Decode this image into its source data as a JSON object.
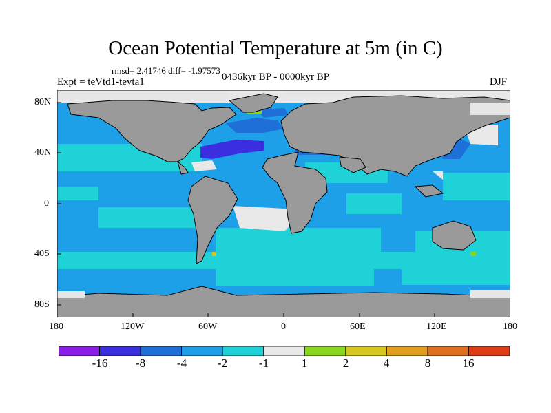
{
  "plot": {
    "title": "Ocean Potential Temperature at 5m (in C)",
    "stats_label": "rmsd= 2.41746 diff= -1.97573",
    "left_label": "Expt = teVtd1-tevta1",
    "center_label": "0436kyr BP - 0000kyr BP",
    "right_label": "DJF"
  },
  "axes": {
    "y_ticks": [
      "80N",
      "40N",
      "0",
      "40S",
      "80S"
    ],
    "x_ticks": [
      "180",
      "120W",
      "60W",
      "0",
      "60E",
      "120E",
      "180"
    ]
  },
  "colorbar": {
    "labels": [
      "-16",
      "-8",
      "-4",
      "-2",
      "-1",
      "1",
      "2",
      "4",
      "8",
      "16"
    ],
    "colors": [
      "#8a1ee8",
      "#3a2ee0",
      "#1f6fd8",
      "#1ea0e8",
      "#1ed2d8",
      "#e8e8e8",
      "#8ad61e",
      "#d6c81e",
      "#e0a01e",
      "#e0701e",
      "#e03c14"
    ]
  },
  "colors": {
    "land": "#9a9a9a",
    "ice": "#e6e6e6",
    "ocean_base": "#1ea0e8"
  }
}
